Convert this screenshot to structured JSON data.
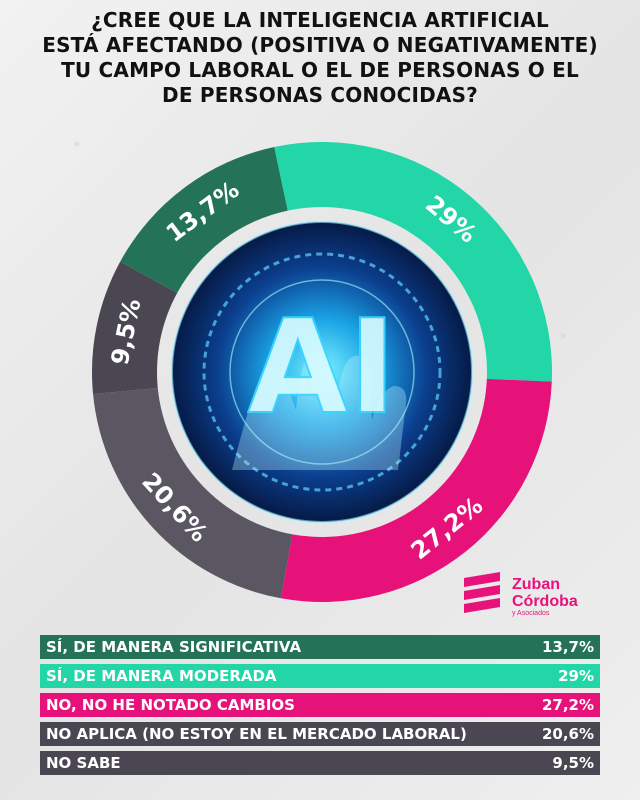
{
  "title": "¿CREE QUE LA INTELIGENCIA ARTIFICIAL\nESTÁ AFECTANDO  (POSITIVA O NEGATIVAMENTE)\nTU CAMPO LABORAL O EL DE PERSONAS O EL\nDE PERSONAS  CONOCIDAS?",
  "center_image_text": "AI",
  "logo": {
    "name": "Zuban\nCórdoba",
    "sub": "y Asociados"
  },
  "chart_data": {
    "type": "pie",
    "style": "donut",
    "categories": [
      "SÍ, DE MANERA MODERADA",
      "NO, NO HE NOTADO CAMBIOS",
      "NO APLICA (NO ESTOY EN EL MERCADO LABORAL)",
      "NO SABE",
      "SÍ, DE MANERA SIGNIFICATIVA"
    ],
    "values": [
      29,
      27.2,
      20.6,
      9.5,
      13.7
    ],
    "value_labels": [
      "29%",
      "27,2%",
      "20,6%",
      "9,5%",
      "13,7%"
    ],
    "colors": [
      "#22d6a7",
      "#e6127a",
      "#5a5763",
      "#4a4753",
      "#247358"
    ],
    "start_angle_deg": -102
  },
  "legend": [
    {
      "label": "SÍ, DE MANERA SIGNIFICATIVA",
      "value": "13,7%"
    },
    {
      "label": "SÍ, DE MANERA MODERADA",
      "value": "29%"
    },
    {
      "label": "NO, NO HE NOTADO CAMBIOS",
      "value": "27,2%"
    },
    {
      "label": "NO APLICA (NO ESTOY EN EL MERCADO LABORAL)",
      "value": "20,6%"
    },
    {
      "label": "NO SABE",
      "value": "9,5%"
    }
  ]
}
